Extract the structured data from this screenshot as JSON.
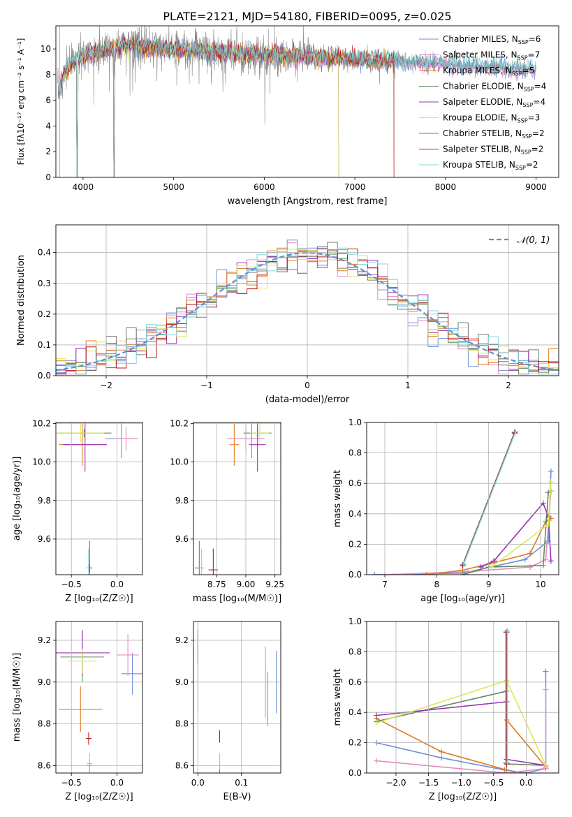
{
  "figure": {
    "title": "PLATE=2121, MJD=54180, FIBERID=0095, z=0.025"
  },
  "colors": {
    "Chabrier MILES": "#6a8fd8",
    "Salpeter MILES": "#e58ac2",
    "Kroupa MILES": "#e07b1e",
    "Chabrier ELODIE": "#5f8a5f",
    "Salpeter ELODIE": "#9b30b5",
    "Kroupa ELODIE": "#d9e854",
    "Chabrier STELIB": "#777777",
    "Salpeter STELIB": "#b51a1a",
    "Kroupa STELIB": "#7fd6dc",
    "observed": "#888888",
    "normal": "#5b8fd0",
    "grid": "#b0b0b0"
  },
  "chart_data": [
    {
      "id": "spectrum",
      "type": "line",
      "title": "PLATE=2121, MJD=54180, FIBERID=0095, z=0.025",
      "xlabel": "wavelength [Angstrom, rest frame]",
      "ylabel": "Flux [fλ10⁻¹⁷ erg cm⁻² s⁻¹ A⁻¹]",
      "xlim": [
        3700,
        9250
      ],
      "ylim": [
        0,
        11.8
      ],
      "xticks": [
        4000,
        5000,
        6000,
        7000,
        8000,
        9000
      ],
      "yticks": [
        0,
        2,
        4,
        6,
        8,
        10
      ],
      "legend_position": "top-right",
      "grid": false,
      "continuum": [
        [
          3720,
          6.5
        ],
        [
          3800,
          8.2
        ],
        [
          3900,
          9.0
        ],
        [
          4000,
          9.5
        ],
        [
          4200,
          9.8
        ],
        [
          4500,
          10.3
        ],
        [
          5000,
          10.0
        ],
        [
          5500,
          9.7
        ],
        [
          6000,
          9.5
        ],
        [
          6500,
          9.4
        ],
        [
          7000,
          9.2
        ],
        [
          7500,
          9.0
        ],
        [
          8000,
          8.8
        ],
        [
          8500,
          8.6
        ],
        [
          9000,
          8.4
        ]
      ],
      "legend": [
        {
          "label": "Chabrier MILES, N",
          "sub": "SSP",
          "tail": "=6"
        },
        {
          "label": "Salpeter MILES, N",
          "sub": "SSP",
          "tail": "=7"
        },
        {
          "label": "Kroupa MILES, N",
          "sub": "SSP",
          "tail": "=5"
        },
        {
          "label": "Chabrier ELODIE, N",
          "sub": "SSP",
          "tail": "=4"
        },
        {
          "label": "Salpeter ELODIE, N",
          "sub": "SSP",
          "tail": "=4"
        },
        {
          "label": "Kroupa ELODIE, N",
          "sub": "SSP",
          "tail": "=3"
        },
        {
          "label": "Chabrier STELIB, N",
          "sub": "SSP",
          "tail": "=2"
        },
        {
          "label": "Salpeter STELIB, N",
          "sub": "SSP",
          "tail": "=2"
        },
        {
          "label": "Kroupa STELIB, N",
          "sub": "SSP",
          "tail": "=2"
        }
      ]
    },
    {
      "id": "residuals",
      "type": "histogram",
      "xlabel": "(data-model)/error",
      "ylabel": "Normed distribution",
      "xlim": [
        -2.5,
        2.5
      ],
      "ylim": [
        0,
        0.49
      ],
      "xticks": [
        -2,
        -1,
        0,
        1,
        2
      ],
      "yticks": [
        0.0,
        0.1,
        0.2,
        0.3,
        0.4
      ],
      "legend": "𝒩(0, 1)",
      "legend_position": "top-right",
      "grid": true,
      "bin_width": 0.1,
      "bin_start": -2.5
    },
    {
      "id": "age_vs_Z",
      "type": "scatter",
      "xlabel": "Z [log₁₀(Z/Z☉)]",
      "ylabel": "age  [log₁₀(age/yr)]",
      "xlim": [
        -0.67,
        0.28
      ],
      "ylim": [
        9.415,
        10.205
      ],
      "xticks": [
        -0.5,
        0.0
      ],
      "xticklabels": [
        "−0.5",
        "0.0"
      ],
      "yticks": [
        9.6,
        9.8,
        10.0,
        10.2
      ],
      "grid": true,
      "points": [
        {
          "model": "Chabrier MILES",
          "x": 0.05,
          "y": 10.12,
          "xerr": 0.18,
          "yerr": 0.1
        },
        {
          "model": "Salpeter MILES",
          "x": 0.1,
          "y": 10.12,
          "xerr": 0.12,
          "yerr": 0.06
        },
        {
          "model": "Kroupa MILES",
          "x": -0.38,
          "y": 10.09,
          "xerr": 0.26,
          "yerr": 0.11
        },
        {
          "model": "Chabrier ELODIE",
          "x": -0.36,
          "y": 10.15,
          "xerr": 0.3,
          "yerr": 0.02
        },
        {
          "model": "Salpeter ELODIE",
          "x": -0.35,
          "y": 10.09,
          "xerr": 0.24,
          "yerr": 0.14
        },
        {
          "model": "Kroupa ELODIE",
          "x": -0.4,
          "y": 10.15,
          "xerr": 0.26,
          "yerr": 0.05
        },
        {
          "model": "Chabrier STELIB",
          "x": -0.3,
          "y": 9.45,
          "xerr": 0.03,
          "yerr": 0.14
        },
        {
          "model": "Salpeter STELIB",
          "x": -0.3,
          "y": 9.45,
          "xerr": 0.02,
          "yerr": 0.02
        },
        {
          "model": "Kroupa STELIB",
          "x": -0.31,
          "y": 9.45,
          "xerr": 0.02,
          "yerr": 0.1
        }
      ]
    },
    {
      "id": "age_vs_mass",
      "type": "scatter",
      "xlabel": "mass [log₁₀(M/M☉)]",
      "xlim": [
        8.55,
        9.3
      ],
      "ylim": [
        9.415,
        10.205
      ],
      "xticks": [
        8.75,
        9.0,
        9.25
      ],
      "yticks": [
        9.6,
        9.8,
        10.0,
        10.2
      ],
      "grid": true,
      "points": [
        {
          "model": "Chabrier MILES",
          "x": 9.05,
          "y": 10.12,
          "xerr": 0.1,
          "yerr": 0.1
        },
        {
          "model": "Salpeter MILES",
          "x": 9.0,
          "y": 10.12,
          "xerr": 0.16,
          "yerr": 0.06
        },
        {
          "model": "Kroupa MILES",
          "x": 8.9,
          "y": 10.09,
          "xerr": 0.04,
          "yerr": 0.11
        },
        {
          "model": "Chabrier ELODIE",
          "x": 9.1,
          "y": 10.15,
          "xerr": 0.12,
          "yerr": 0.02
        },
        {
          "model": "Salpeter ELODIE",
          "x": 9.1,
          "y": 10.09,
          "xerr": 0.07,
          "yerr": 0.14
        },
        {
          "model": "Kroupa ELODIE",
          "x": 9.12,
          "y": 10.15,
          "xerr": 0.08,
          "yerr": 0.05
        },
        {
          "model": "Chabrier STELIB",
          "x": 8.6,
          "y": 9.45,
          "xerr": 0.04,
          "yerr": 0.14
        },
        {
          "model": "Salpeter STELIB",
          "x": 8.72,
          "y": 9.44,
          "xerr": 0.04,
          "yerr": 0.11
        },
        {
          "model": "Kroupa STELIB",
          "x": 8.62,
          "y": 9.45,
          "xerr": 0.02,
          "yerr": 0.1
        }
      ]
    },
    {
      "id": "weight_vs_age",
      "type": "line",
      "xlabel": "age  [log₁₀(age/yr)]",
      "ylabel": "mass weight",
      "xlim": [
        6.65,
        10.35
      ],
      "ylim": [
        0,
        1.0
      ],
      "xticks": [
        7,
        8,
        9,
        10
      ],
      "yticks": [
        0.0,
        0.2,
        0.4,
        0.6,
        0.8,
        1.0
      ],
      "grid": true,
      "series": [
        {
          "model": "Chabrier MILES",
          "x": [
            6.8,
            8.5,
            9.7,
            10.15,
            10.2
          ],
          "y": [
            0.0,
            0.01,
            0.1,
            0.22,
            0.68
          ]
        },
        {
          "model": "Salpeter MILES",
          "x": [
            7.0,
            8.6,
            9.8,
            10.1,
            10.2
          ],
          "y": [
            0.0,
            0.02,
            0.05,
            0.1,
            0.55
          ]
        },
        {
          "model": "Kroupa MILES",
          "x": [
            7.8,
            8.5,
            9.0,
            9.8,
            10.1,
            10.2
          ],
          "y": [
            0.0,
            0.03,
            0.07,
            0.14,
            0.35,
            0.37
          ]
        },
        {
          "model": "Chabrier ELODIE",
          "x": [
            8.5,
            9.0,
            10.05,
            10.15
          ],
          "y": [
            0.0,
            0.05,
            0.06,
            0.54
          ]
        },
        {
          "model": "Salpeter ELODIE",
          "x": [
            8.85,
            9.1,
            10.05,
            10.15,
            10.2
          ],
          "y": [
            0.05,
            0.09,
            0.47,
            0.38,
            0.09
          ]
        },
        {
          "model": "Kroupa ELODIE",
          "x": [
            9.05,
            10.15,
            10.2
          ],
          "y": [
            0.05,
            0.33,
            0.61
          ]
        },
        {
          "model": "Chabrier STELIB",
          "x": [
            8.5,
            9.5
          ],
          "y": [
            0.065,
            0.935
          ]
        },
        {
          "model": "Salpeter STELIB",
          "x": [
            8.5,
            9.5
          ],
          "y": [
            0.06,
            0.93
          ]
        },
        {
          "model": "Kroupa STELIB",
          "x": [
            8.52,
            9.52
          ],
          "y": [
            0.07,
            0.94
          ]
        }
      ]
    },
    {
      "id": "mass_vs_Z",
      "type": "scatter",
      "xlabel": "Z [log₁₀(Z/Z☉)]",
      "ylabel": "mass [log₁₀(M/M☉)]",
      "xlim": [
        -0.67,
        0.28
      ],
      "ylim": [
        8.565,
        9.29
      ],
      "xticks": [
        -0.5,
        0.0
      ],
      "xticklabels": [
        "−0.5",
        "0.0"
      ],
      "yticks": [
        8.6,
        8.8,
        9.0,
        9.2
      ],
      "grid": true,
      "points": [
        {
          "model": "Chabrier MILES",
          "x": 0.17,
          "y": 9.04,
          "xerr": 0.12,
          "yerr": 0.1
        },
        {
          "model": "Salpeter MILES",
          "x": 0.12,
          "y": 9.13,
          "xerr": 0.12,
          "yerr": 0.1
        },
        {
          "model": "Kroupa MILES",
          "x": -0.4,
          "y": 8.87,
          "xerr": 0.24,
          "yerr": 0.11
        },
        {
          "model": "Chabrier ELODIE",
          "x": -0.38,
          "y": 9.12,
          "xerr": 0.24,
          "yerr": 0.12
        },
        {
          "model": "Salpeter ELODIE",
          "x": -0.38,
          "y": 9.14,
          "xerr": 0.3,
          "yerr": 0.11
        },
        {
          "model": "Kroupa ELODIE",
          "x": -0.38,
          "y": 9.1,
          "xerr": 0.16,
          "yerr": 0.06
        },
        {
          "model": "Chabrier STELIB",
          "x": -0.3,
          "y": 8.6,
          "xerr": 0.03,
          "yerr": 0.03
        },
        {
          "model": "Salpeter STELIB",
          "x": -0.31,
          "y": 8.73,
          "xerr": 0.03,
          "yerr": 0.03
        },
        {
          "model": "Kroupa STELIB",
          "x": -0.3,
          "y": 8.61,
          "xerr": 0.03,
          "yerr": 0.05
        }
      ]
    },
    {
      "id": "mass_vs_ebv",
      "type": "scatter",
      "xlabel": "E(B-V)",
      "xlim": [
        -0.01,
        0.19
      ],
      "ylim": [
        8.565,
        9.29
      ],
      "xticks": [
        0.0,
        0.1
      ],
      "yticks": [
        8.6,
        8.8,
        9.0,
        9.2
      ],
      "grid": true,
      "points": [
        {
          "model": "Chabrier MILES",
          "x": 0.18,
          "y": 9.0,
          "xerr": 0,
          "yerr": 0.15
        },
        {
          "model": "Salpeter MILES",
          "x": 0.155,
          "y": 9.0,
          "xerr": 0,
          "yerr": 0.17
        },
        {
          "model": "Kroupa MILES",
          "x": 0.16,
          "y": 8.92,
          "xerr": 0,
          "yerr": 0.13
        },
        {
          "model": "Chabrier ELODIE",
          "x": 0.0,
          "y": 9.15,
          "xerr": 0,
          "yerr": 0.07
        },
        {
          "model": "Salpeter ELODIE",
          "x": 0.0,
          "y": 9.18,
          "xerr": 0,
          "yerr": 0.07
        },
        {
          "model": "Kroupa ELODIE",
          "x": 0.0,
          "y": 9.05,
          "xerr": 0,
          "yerr": 0.2
        },
        {
          "model": "Chabrier STELIB",
          "x": 0.05,
          "y": 8.6,
          "xerr": 0,
          "yerr": 0.05
        },
        {
          "model": "Salpeter STELIB",
          "x": 0.05,
          "y": 8.74,
          "xerr": 0,
          "yerr": 0.03
        },
        {
          "model": "Kroupa STELIB",
          "x": 0.05,
          "y": 8.62,
          "xerr": 0,
          "yerr": 0.04
        }
      ]
    },
    {
      "id": "weight_vs_Z",
      "type": "line",
      "xlabel": "Z [log₁₀(Z/Z☉)]",
      "ylabel": "mass weight",
      "xlim": [
        -2.45,
        0.5
      ],
      "ylim": [
        0,
        1.0
      ],
      "xticks": [
        -2.0,
        -1.5,
        -1.0,
        -0.5,
        0.0
      ],
      "xticklabels": [
        "−2.0",
        "−1.5",
        "−1.0",
        "−0.5",
        "0.0"
      ],
      "yticks": [
        0.0,
        0.2,
        0.4,
        0.6,
        0.8,
        1.0
      ],
      "grid": true,
      "series": [
        {
          "model": "Chabrier MILES",
          "x": [
            -2.3,
            -1.3,
            -0.33,
            0.0,
            0.3,
            0.3
          ],
          "y": [
            0.2,
            0.1,
            0.02,
            0.0,
            0.03,
            0.67
          ]
        },
        {
          "model": "Salpeter MILES",
          "x": [
            -2.3,
            -0.3,
            0.3,
            0.3
          ],
          "y": [
            0.08,
            0.0,
            0.03,
            0.55
          ]
        },
        {
          "model": "Kroupa MILES",
          "x": [
            -2.3,
            -1.3,
            -0.3,
            -0.3,
            0.3
          ],
          "y": [
            0.36,
            0.14,
            0.02,
            0.35,
            0.04
          ]
        },
        {
          "model": "Chabrier ELODIE",
          "x": [
            -2.3,
            -0.3,
            -0.3,
            0.3
          ],
          "y": [
            0.34,
            0.54,
            0.06,
            0.05
          ]
        },
        {
          "model": "Salpeter ELODIE",
          "x": [
            -2.3,
            -0.3,
            -0.3,
            0.3
          ],
          "y": [
            0.38,
            0.47,
            0.09,
            0.05
          ]
        },
        {
          "model": "Kroupa ELODIE",
          "x": [
            -2.3,
            -0.3,
            0.3
          ],
          "y": [
            0.33,
            0.61,
            0.05
          ]
        },
        {
          "model": "Chabrier STELIB",
          "x": [
            -0.31,
            -0.31
          ],
          "y": [
            0.07,
            0.93
          ]
        },
        {
          "model": "Salpeter STELIB",
          "x": [
            -0.3,
            -0.3
          ],
          "y": [
            0.06,
            0.93
          ]
        },
        {
          "model": "Kroupa STELIB",
          "x": [
            -0.29,
            -0.29
          ],
          "y": [
            0.07,
            0.94
          ]
        }
      ]
    }
  ]
}
